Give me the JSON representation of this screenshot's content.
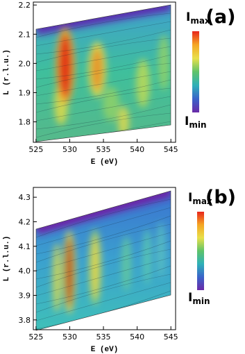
{
  "chart_data": [
    {
      "type": "contour",
      "panel_label": "(a)",
      "xlabel": "E (eV)",
      "ylabel": "L (r.l.u.)",
      "xlim": [
        524.6,
        545.7
      ],
      "ylim": [
        1.73,
        2.21
      ],
      "xticks": [
        525,
        530,
        535,
        540,
        545
      ],
      "yticks": [
        2.2,
        2.1,
        {
          "value": 2,
          "label": "2.0"
        },
        1.9,
        1.8
      ],
      "colorbar": {
        "max_label": "I",
        "max_sub": "max",
        "min_label": "I",
        "min_sub": "min",
        "colors": [
          "#e8261c",
          "#f5a623",
          "#e8e04a",
          "#5fc36a",
          "#2fb0b8",
          "#3a63c9",
          "#6a2aa8"
        ]
      }
    },
    {
      "type": "contour",
      "panel_label": "(b)",
      "xlabel": "E (eV)",
      "ylabel": "L (r.l.u.)",
      "xlim": [
        524.6,
        545.7
      ],
      "ylim": [
        3.76,
        4.34
      ],
      "xticks": [
        525,
        530,
        535,
        540,
        545
      ],
      "yticks": [
        4.3,
        4.2,
        4.1,
        {
          "value": 4,
          "label": "4.0"
        },
        3.9,
        3.8
      ],
      "colorbar": {
        "max_label": "I",
        "max_sub": "max",
        "min_label": "I",
        "min_sub": "min",
        "colors": [
          "#e8261c",
          "#f5a623",
          "#e8e04a",
          "#5fc36a",
          "#2fb0b8",
          "#3a63c9",
          "#6a2aa8"
        ]
      }
    }
  ]
}
